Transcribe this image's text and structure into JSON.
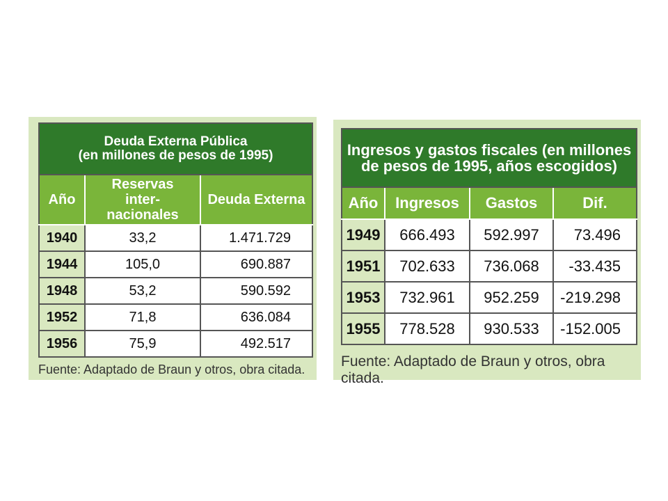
{
  "table1": {
    "title_line1": "Deuda Externa Pública",
    "title_line2": "(en millones de pesos de 1995)",
    "headers": [
      "Año",
      "Reservas inter- nacionales",
      "Deuda Externa"
    ],
    "rows": [
      [
        "1940",
        "33,2",
        "1.471.729"
      ],
      [
        "1944",
        "105,0",
        "690.887"
      ],
      [
        "1948",
        "53,2",
        "590.592"
      ],
      [
        "1952",
        "71,8",
        "636.084"
      ],
      [
        "1956",
        "75,9",
        "492.517"
      ]
    ],
    "source": "Fuente: Adaptado de Braun y otros, obra citada."
  },
  "table2": {
    "title_line1": "Ingresos y gastos fiscales (en millones",
    "title_line2": "de pesos de 1995, años escogidos)",
    "headers": [
      "Año",
      "Ingresos",
      "Gastos",
      "Dif."
    ],
    "rows": [
      [
        "1949",
        "666.493",
        "592.997",
        "73.496"
      ],
      [
        "1951",
        "702.633",
        "736.068",
        "-33.435"
      ],
      [
        "1953",
        "732.961",
        "952.259",
        "-219.298"
      ],
      [
        "1955",
        "778.528",
        "930.533",
        "-152.005"
      ]
    ],
    "source": "Fuente: Adaptado de Braun y otros, obra citada."
  },
  "colors": {
    "title_green": "#2f7a2a",
    "header_green": "#7ab53a",
    "panel_bg": "#d9e8c0"
  }
}
